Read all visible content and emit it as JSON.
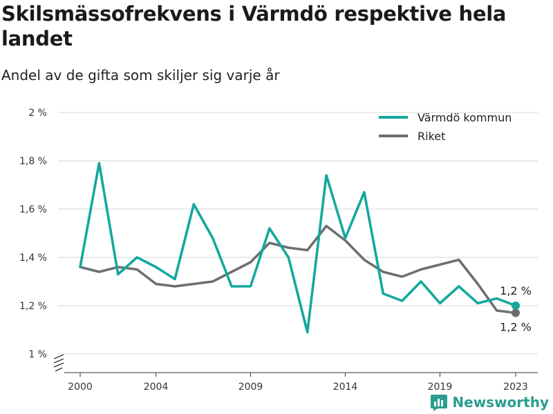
{
  "header": {
    "title": "Skilsmässofrekvens i Värmdö respektive hela landet",
    "subtitle": "Andel av de gifta som skiljer sig varje år"
  },
  "brand": {
    "name": "Newsworthy",
    "color": "#2a9d8f"
  },
  "chart_data": {
    "type": "line",
    "x": [
      2000,
      2001,
      2002,
      2003,
      2004,
      2005,
      2006,
      2007,
      2008,
      2009,
      2010,
      2011,
      2012,
      2013,
      2014,
      2015,
      2016,
      2017,
      2018,
      2019,
      2020,
      2021,
      2022,
      2023
    ],
    "series": [
      {
        "name": "Värmdö kommun",
        "color": "#13a89e",
        "values": [
          1.36,
          1.79,
          1.33,
          1.4,
          1.36,
          1.31,
          1.62,
          1.48,
          1.28,
          1.28,
          1.52,
          1.4,
          1.09,
          1.74,
          1.48,
          1.67,
          1.25,
          1.22,
          1.3,
          1.21,
          1.28,
          1.21,
          1.23,
          1.2
        ],
        "end_label": "1,2 %"
      },
      {
        "name": "Riket",
        "color": "#6e6e70",
        "values": [
          1.36,
          1.34,
          1.36,
          1.35,
          1.29,
          1.28,
          1.29,
          1.3,
          1.34,
          1.38,
          1.46,
          1.44,
          1.43,
          1.53,
          1.47,
          1.39,
          1.34,
          1.32,
          1.35,
          1.37,
          1.39,
          1.29,
          1.18,
          1.17
        ],
        "end_label": "1,2 %"
      }
    ],
    "y_ticks": [
      {
        "value": 1.0,
        "label": "1 %"
      },
      {
        "value": 1.2,
        "label": "1,2 %"
      },
      {
        "value": 1.4,
        "label": "1,4 %"
      },
      {
        "value": 1.6,
        "label": "1,6 %"
      },
      {
        "value": 1.8,
        "label": "1,8 %"
      },
      {
        "value": 2.0,
        "label": "2 %"
      }
    ],
    "x_ticks": [
      {
        "value": 2000,
        "label": "2000"
      },
      {
        "value": 2004,
        "label": "2004"
      },
      {
        "value": 2009,
        "label": "2009"
      },
      {
        "value": 2014,
        "label": "2014"
      },
      {
        "value": 2019,
        "label": "2019"
      },
      {
        "value": 2023,
        "label": "2023"
      }
    ],
    "ylim": [
      1.0,
      2.0
    ],
    "xlim": [
      2000,
      2023
    ],
    "grid": true,
    "legend_position": "top-right",
    "y_axis_break": true
  }
}
